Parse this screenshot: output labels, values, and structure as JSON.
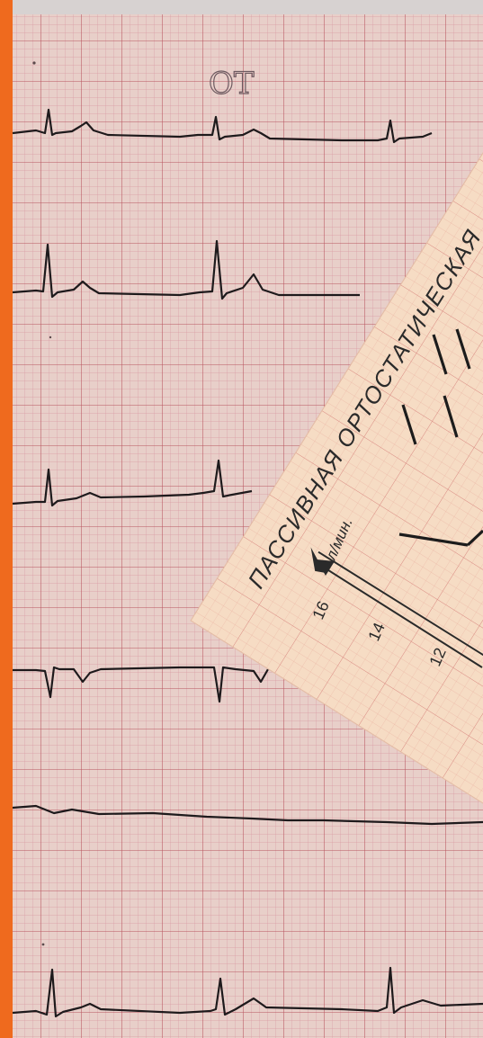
{
  "scene": {
    "background_color": "#e9d3cc",
    "grid_minor_color": "#d99aa2",
    "grid_major_color": "#b8545f",
    "trace_color": "#1e1a1c",
    "orange_strip_color": "#ef6a1e",
    "chart_paper_color": "#f6dcc4"
  },
  "ecg_strip": {
    "handwritten_label": "ОТ"
  },
  "orthostatic_chart": {
    "title": "ПАССИВНАЯ ОРТОСТАТИЧЕСКАЯ",
    "unit_label": "л/мин.",
    "axis_ticks": [
      "16",
      "14",
      "12"
    ]
  }
}
